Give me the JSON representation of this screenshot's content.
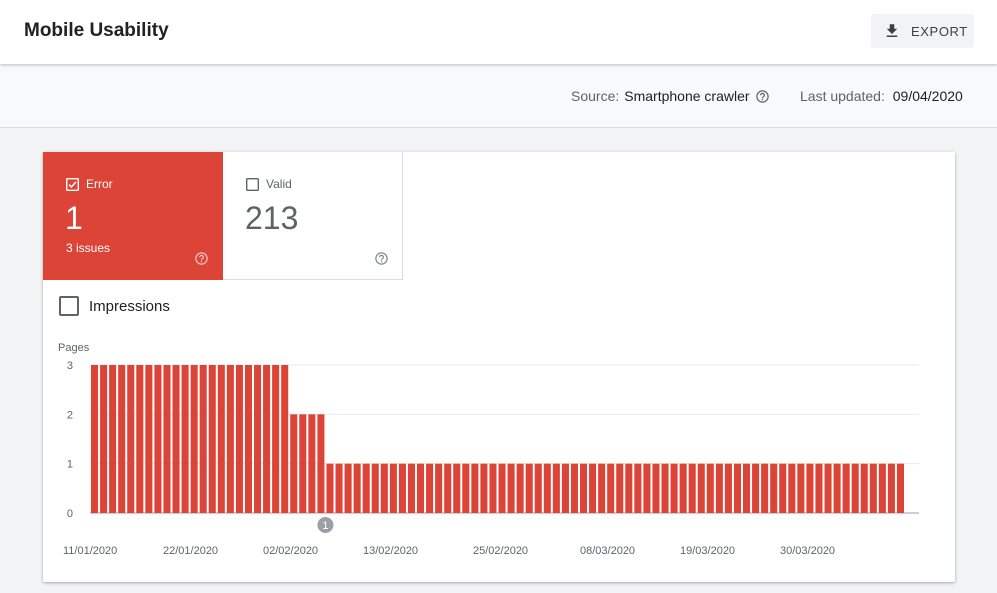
{
  "header": {
    "title": "Mobile Usability",
    "export_label": "EXPORT"
  },
  "info": {
    "source_label": "Source:",
    "source_value": "Smartphone crawler",
    "updated_label": "Last updated:",
    "updated_value": "09/04/2020"
  },
  "tiles": {
    "error": {
      "label": "Error",
      "count": "1",
      "sub": "3 issues",
      "checked": true,
      "color": "#db4437"
    },
    "valid": {
      "label": "Valid",
      "count": "213",
      "checked": false
    }
  },
  "impressions": {
    "label": "Impressions",
    "checked": false
  },
  "chart_data": {
    "type": "bar",
    "ylabel": "Pages",
    "ylim": [
      0,
      3
    ],
    "yticks": [
      0,
      1,
      2,
      3
    ],
    "xtick_labels": [
      "11/01/2020",
      "22/01/2020",
      "02/02/2020",
      "13/02/2020",
      "25/02/2020",
      "08/03/2020",
      "19/03/2020",
      "30/03/2020"
    ],
    "bar_color": "#db4437",
    "grid": true,
    "annotations": [
      {
        "label": "1",
        "after_bar_index": 26
      }
    ],
    "series": [
      {
        "values": [
          3,
          3,
          3,
          3,
          3,
          3,
          3,
          3,
          3,
          3,
          3,
          3,
          3,
          3,
          3,
          3,
          3,
          3,
          3,
          3,
          3,
          3,
          2,
          2,
          2,
          2,
          1,
          1,
          1,
          1,
          1,
          1,
          1,
          1,
          1,
          1,
          1,
          1,
          1,
          1,
          1,
          1,
          1,
          1,
          1,
          1,
          1,
          1,
          1,
          1,
          1,
          1,
          1,
          1,
          1,
          1,
          1,
          1,
          1,
          1,
          1,
          1,
          1,
          1,
          1,
          1,
          1,
          1,
          1,
          1,
          1,
          1,
          1,
          1,
          1,
          1,
          1,
          1,
          1,
          1,
          1,
          1,
          1,
          1,
          1,
          1,
          1,
          1,
          1,
          1
        ]
      }
    ]
  }
}
